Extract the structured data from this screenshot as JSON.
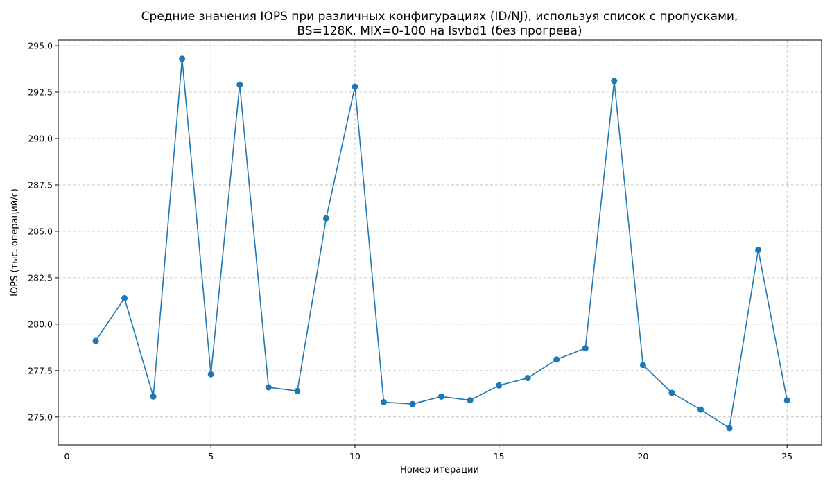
{
  "chart_data": {
    "type": "line",
    "title_lines": [
      "Средние значения IOPS при различных конфигурациях (ID/NJ), используя список с пропусками,",
      "BS=128K, MIX=0-100 на lsvbd1 (без прогрева)"
    ],
    "xlabel": "Номер итерации",
    "ylabel": "IOPS (тыс. операций/с)",
    "xlim": [
      -0.3,
      26.2
    ],
    "ylim": [
      273.5,
      295.3
    ],
    "xticks": [
      0,
      5,
      10,
      15,
      20,
      25
    ],
    "xtick_labels": [
      "0",
      "5",
      "10",
      "15",
      "20",
      "25"
    ],
    "yticks": [
      275.0,
      277.5,
      280.0,
      282.5,
      285.0,
      287.5,
      290.0,
      292.5,
      295.0
    ],
    "ytick_labels": [
      "275.0",
      "277.5",
      "280.0",
      "282.5",
      "285.0",
      "287.5",
      "290.0",
      "292.5",
      "295.0"
    ],
    "grid": true,
    "color": "#1f77b4",
    "x": [
      1,
      2,
      3,
      4,
      5,
      6,
      7,
      8,
      9,
      10,
      11,
      12,
      13,
      14,
      15,
      16,
      17,
      18,
      19,
      20,
      21,
      22,
      23,
      24,
      25
    ],
    "y": [
      279.1,
      281.4,
      276.1,
      294.3,
      277.3,
      292.9,
      276.6,
      276.4,
      285.7,
      292.8,
      275.8,
      275.7,
      276.1,
      275.9,
      276.7,
      277.1,
      278.1,
      278.7,
      293.1,
      277.8,
      276.3,
      275.4,
      274.4,
      284.0,
      275.9
    ]
  }
}
